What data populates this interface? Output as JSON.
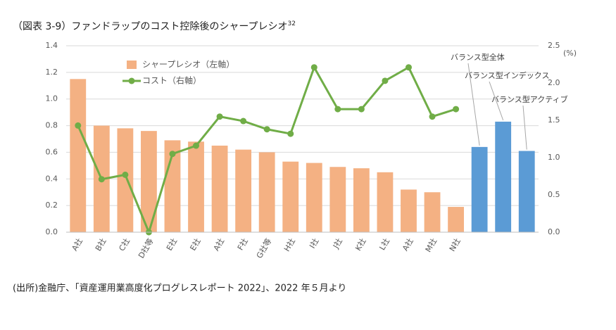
{
  "chart_data": {
    "type": "bar",
    "title": "（図表 3-9）ファンドラップのコスト控除後のシャープレシオ",
    "title_sup": "32",
    "source": "(出所)金融庁、「資産運用業高度化プログレスレポート 2022」、2022 年５月より",
    "y2_unit": "(%)",
    "categories": [
      "A社",
      "B社",
      "C社",
      "D社等",
      "E社",
      "E社",
      "A社",
      "F社",
      "G社等",
      "H社",
      "I社",
      "J社",
      "K社",
      "L社",
      "A社",
      "M社",
      "N社",
      null,
      null,
      null
    ],
    "series": [
      {
        "name": "シャープレシオ（左軸）",
        "type": "bar",
        "color": "#f4b183",
        "colors": [
          "#f4b183",
          "#f4b183",
          "#f4b183",
          "#f4b183",
          "#f4b183",
          "#f4b183",
          "#f4b183",
          "#f4b183",
          "#f4b183",
          "#f4b183",
          "#f4b183",
          "#f4b183",
          "#f4b183",
          "#f4b183",
          "#f4b183",
          "#f4b183",
          "#f4b183",
          "#5b9bd5",
          "#5b9bd5",
          "#5b9bd5"
        ],
        "values": [
          1.15,
          0.8,
          0.78,
          0.76,
          0.69,
          0.68,
          0.65,
          0.62,
          0.6,
          0.53,
          0.52,
          0.49,
          0.48,
          0.45,
          0.32,
          0.3,
          0.19,
          0.64,
          0.83,
          0.61
        ]
      },
      {
        "name": "コスト（右軸）",
        "type": "line",
        "axis": "y2",
        "color": "#70ad47",
        "values": [
          1.43,
          0.71,
          0.77,
          0.0,
          1.05,
          1.16,
          1.55,
          1.49,
          1.38,
          1.32,
          2.21,
          1.65,
          1.65,
          2.03,
          2.21,
          1.55,
          1.65,
          null,
          null,
          null
        ]
      }
    ],
    "annotations": [
      "バランス型全体",
      "バランス型インデックス",
      "バランス型アクティブ"
    ],
    "ylim": [
      0,
      1.4
    ],
    "yticks": [
      {
        "value": 0,
        "label": "0.0"
      },
      0.2,
      0.4,
      0.6,
      0.8,
      {
        "value": 1,
        "label": "1.0"
      },
      1.2,
      1.4
    ],
    "y2lim": [
      0,
      2.5
    ],
    "y2ticks": [
      {
        "value": 0,
        "label": "0.0"
      },
      0.5,
      {
        "value": 1,
        "label": "1.0"
      },
      1.5,
      {
        "value": 2,
        "label": "2.0"
      },
      2.5
    ],
    "grid": true,
    "legend": "upper left"
  }
}
